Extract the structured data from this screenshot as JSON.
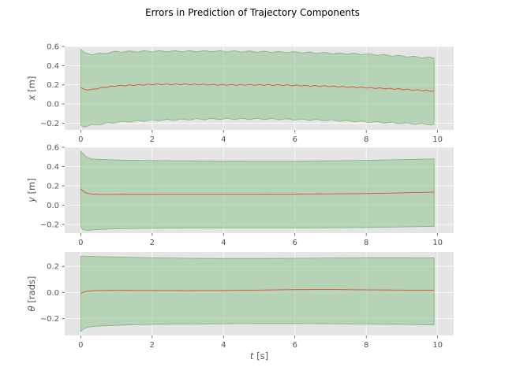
{
  "figure": {
    "title": "Errors in Prediction of Trajectory Components",
    "colors": {
      "background": "#e5e5e5",
      "band_fill": "#8fc48f",
      "band_edge": "#6aa56a",
      "mean_line": "#e24a33",
      "grid": "#ffffff"
    }
  },
  "chart_data": [
    {
      "type": "area",
      "subplot": 1,
      "title": "",
      "ylabel": {
        "symbol": "x",
        "unit": "[m]"
      },
      "xlabel": {
        "symbol": "",
        "unit": ""
      },
      "xlim": [
        -0.45,
        10.45
      ],
      "ylim": [
        -0.27,
        0.6
      ],
      "xticks": [
        0,
        2,
        4,
        6,
        8,
        10
      ],
      "xtick_labels": [
        "0",
        "2",
        "4",
        "6",
        "8",
        "10"
      ],
      "yticks": [
        -0.2,
        0.0,
        0.2,
        0.4,
        0.6
      ],
      "ytick_labels": [
        "−0.2",
        "0.0",
        "0.2",
        "0.4",
        "0.6"
      ],
      "grid": true,
      "wavy": true,
      "series": [
        {
          "x": [
            0,
            0.1,
            0.3,
            0.5,
            1,
            2,
            3,
            4,
            5,
            6,
            7,
            8,
            9,
            9.9
          ],
          "mean": [
            0.17,
            0.15,
            0.15,
            0.165,
            0.19,
            0.205,
            0.205,
            0.2,
            0.2,
            0.195,
            0.185,
            0.17,
            0.155,
            0.135
          ],
          "upper": [
            0.57,
            0.53,
            0.52,
            0.525,
            0.545,
            0.55,
            0.55,
            0.55,
            0.545,
            0.54,
            0.53,
            0.52,
            0.5,
            0.48
          ],
          "lower": [
            -0.22,
            -0.235,
            -0.22,
            -0.21,
            -0.19,
            -0.17,
            -0.16,
            -0.155,
            -0.155,
            -0.16,
            -0.17,
            -0.185,
            -0.2,
            -0.215
          ]
        }
      ]
    },
    {
      "type": "area",
      "subplot": 2,
      "title": "",
      "ylabel": {
        "symbol": "y",
        "unit": "[m]"
      },
      "xlabel": {
        "symbol": "",
        "unit": ""
      },
      "xlim": [
        -0.45,
        10.45
      ],
      "ylim": [
        -0.29,
        0.6
      ],
      "xticks": [
        0,
        2,
        4,
        6,
        8,
        10
      ],
      "xtick_labels": [
        "0",
        "2",
        "4",
        "6",
        "8",
        "10"
      ],
      "yticks": [
        -0.2,
        0.0,
        0.2,
        0.4,
        0.6
      ],
      "ytick_labels": [
        "−0.2",
        "0.0",
        "0.2",
        "0.4",
        "0.6"
      ],
      "grid": true,
      "wavy": false,
      "series": [
        {
          "x": [
            0,
            0.05,
            0.15,
            0.3,
            0.5,
            1,
            2,
            3,
            4,
            5,
            6,
            7,
            8,
            9,
            9.9
          ],
          "mean": [
            0.17,
            0.15,
            0.125,
            0.115,
            0.112,
            0.112,
            0.113,
            0.114,
            0.114,
            0.114,
            0.115,
            0.117,
            0.12,
            0.127,
            0.135
          ],
          "upper": [
            0.56,
            0.54,
            0.5,
            0.48,
            0.475,
            0.468,
            0.463,
            0.46,
            0.458,
            0.457,
            0.457,
            0.46,
            0.465,
            0.472,
            0.48
          ],
          "lower": [
            -0.23,
            -0.25,
            -0.262,
            -0.258,
            -0.252,
            -0.245,
            -0.24,
            -0.238,
            -0.237,
            -0.237,
            -0.237,
            -0.235,
            -0.232,
            -0.226,
            -0.22
          ]
        }
      ]
    },
    {
      "type": "area",
      "subplot": 3,
      "title": "",
      "ylabel": {
        "symbol": "θ",
        "unit": "[rads]"
      },
      "xlabel": {
        "symbol": "t",
        "unit": "[s]"
      },
      "xlim": [
        -0.45,
        10.45
      ],
      "ylim": [
        -0.33,
        0.31
      ],
      "xticks": [
        0,
        2,
        4,
        6,
        8,
        10
      ],
      "xtick_labels": [
        "0",
        "2",
        "4",
        "6",
        "8",
        "10"
      ],
      "yticks": [
        -0.2,
        0.0,
        0.2
      ],
      "ytick_labels": [
        "−0.2",
        "0.0",
        "0.2"
      ],
      "grid": true,
      "wavy": false,
      "series": [
        {
          "x": [
            0,
            0.05,
            0.15,
            0.3,
            0.5,
            1,
            2,
            3,
            4,
            5,
            6,
            7,
            8,
            9,
            9.9
          ],
          "mean": [
            -0.01,
            0.0,
            0.008,
            0.012,
            0.015,
            0.016,
            0.015,
            0.014,
            0.015,
            0.018,
            0.022,
            0.023,
            0.02,
            0.018,
            0.017
          ],
          "upper": [
            0.275,
            0.28,
            0.278,
            0.276,
            0.275,
            0.272,
            0.266,
            0.262,
            0.26,
            0.26,
            0.262,
            0.264,
            0.266,
            0.266,
            0.265
          ],
          "lower": [
            -0.3,
            -0.285,
            -0.27,
            -0.262,
            -0.258,
            -0.252,
            -0.245,
            -0.242,
            -0.24,
            -0.239,
            -0.239,
            -0.24,
            -0.242,
            -0.245,
            -0.25
          ]
        }
      ]
    }
  ]
}
